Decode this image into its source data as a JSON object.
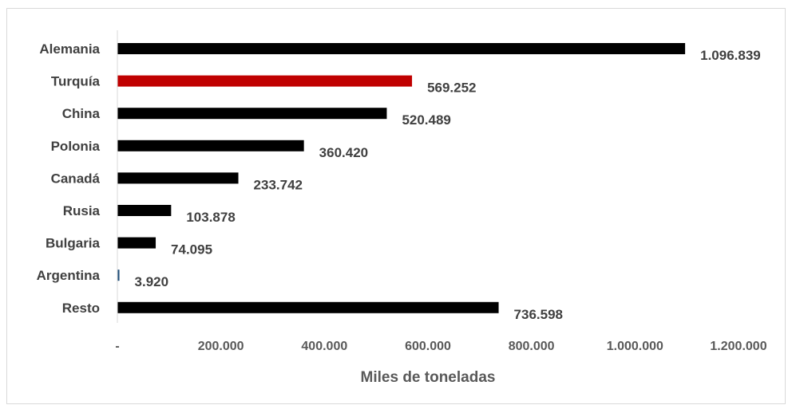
{
  "chart_data": {
    "type": "bar",
    "orientation": "horizontal",
    "categories": [
      "Alemania",
      "Turquía",
      "China",
      "Polonia",
      "Canadá",
      "Rusia",
      "Bulgaria",
      "Argentina",
      "Resto"
    ],
    "values": [
      1096839,
      569252,
      520489,
      360420,
      233742,
      103878,
      74095,
      3920,
      736598
    ],
    "value_labels": [
      "1.096.839",
      "569.252",
      "520.489",
      "360.420",
      "233.742",
      "103.878",
      "74.095",
      "3.920",
      "736.598"
    ],
    "bar_colors": [
      "#000000",
      "#c00000",
      "#000000",
      "#000000",
      "#000000",
      "#000000",
      "#000000",
      "#1f4e79",
      "#000000"
    ],
    "xlabel": "Miles de toneladas",
    "xlim": [
      0,
      1200000
    ],
    "x_ticks": [
      0,
      200000,
      400000,
      600000,
      800000,
      1000000,
      1200000
    ],
    "x_tick_labels": [
      "-",
      "200.000",
      "400.000",
      "600.000",
      "800.000",
      "1.000.000",
      "1.200.000"
    ],
    "grid": false,
    "legend": "none"
  }
}
